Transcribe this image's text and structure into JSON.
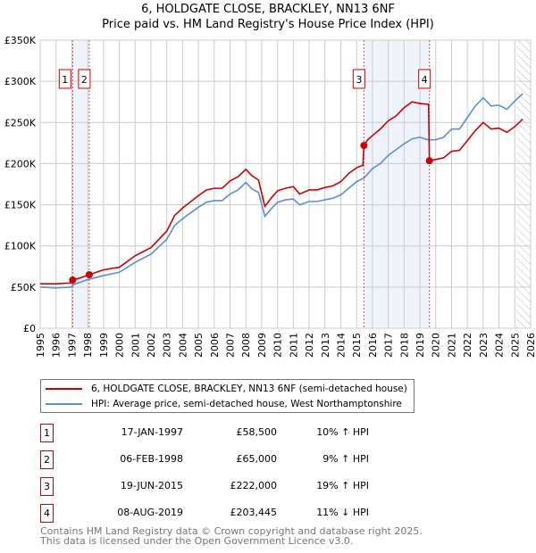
{
  "chart_data": {
    "type": "line",
    "title": "6, HOLDGATE CLOSE, BRACKLEY, NN13 6NF",
    "subtitle": "Price paid vs. HM Land Registry's House Price Index (HPI)",
    "xlim": [
      1995,
      2026
    ],
    "ylim": [
      0,
      350000
    ],
    "x_ticks": [
      "1995",
      "1996",
      "1997",
      "1998",
      "1999",
      "2000",
      "2001",
      "2002",
      "2003",
      "2004",
      "2005",
      "2006",
      "2007",
      "2008",
      "2009",
      "2010",
      "2011",
      "2012",
      "2013",
      "2014",
      "2015",
      "2016",
      "2017",
      "2018",
      "2019",
      "2020",
      "2021",
      "2022",
      "2023",
      "2024",
      "2025",
      "2026"
    ],
    "y_ticks": [
      {
        "v": 0,
        "label": "£0"
      },
      {
        "v": 50000,
        "label": "£50K"
      },
      {
        "v": 100000,
        "label": "£100K"
      },
      {
        "v": 150000,
        "label": "£150K"
      },
      {
        "v": 200000,
        "label": "£200K"
      },
      {
        "v": 250000,
        "label": "£250K"
      },
      {
        "v": 300000,
        "label": "£300K"
      },
      {
        "v": 350000,
        "label": "£350K"
      }
    ],
    "grid": true,
    "series": [
      {
        "name": "6, HOLDGATE CLOSE, BRACKLEY, NN13 6NF (semi-detached house)",
        "color": "#cc0000",
        "x": [
          1995,
          1996,
          1996.9,
          1997.05,
          1997.5,
          1998.1,
          1999,
          2000,
          2001,
          2002,
          2003,
          2003.5,
          2004,
          2005,
          2005.5,
          2006,
          2006.5,
          2007,
          2007.5,
          2008,
          2008.4,
          2008.8,
          2009.2,
          2009.6,
          2010,
          2010.5,
          2011,
          2011.4,
          2012,
          2012.5,
          2013,
          2013.5,
          2014,
          2014.5,
          2015,
          2015.4,
          2015.46,
          2015.7,
          2016,
          2016.5,
          2017,
          2017.5,
          2018,
          2018.5,
          2019,
          2019.55,
          2019.6,
          2020,
          2020.5,
          2021,
          2021.5,
          2022,
          2022.5,
          2023,
          2023.5,
          2024,
          2024.5,
          2025,
          2025.5
        ],
        "y": [
          54000,
          54000,
          55000,
          58500,
          61000,
          65000,
          71000,
          74000,
          88000,
          98000,
          118000,
          137000,
          146000,
          161000,
          168000,
          170000,
          170000,
          179000,
          184000,
          193000,
          185000,
          180000,
          148000,
          158000,
          167000,
          170000,
          172000,
          163000,
          168000,
          168000,
          171000,
          173000,
          178000,
          188000,
          195000,
          198000,
          222000,
          229000,
          234000,
          242000,
          252000,
          258000,
          268000,
          275000,
          273000,
          272000,
          203445,
          205000,
          207000,
          215000,
          216000,
          228000,
          240000,
          250000,
          242000,
          243000,
          238000,
          245000,
          254000
        ]
      },
      {
        "name": "HPI: Average price, semi-detached house, West Northamptonshire",
        "color": "#5b8fd0",
        "x": [
          1995,
          1996,
          1997,
          1997.1,
          1998,
          1999,
          2000,
          2001,
          2002,
          2003,
          2003.5,
          2004,
          2005,
          2005.5,
          2006,
          2006.5,
          2007,
          2007.5,
          2008,
          2008.4,
          2008.8,
          2009.2,
          2009.6,
          2010,
          2010.5,
          2011,
          2011.4,
          2012,
          2012.5,
          2013,
          2013.5,
          2014,
          2014.5,
          2015,
          2015.5,
          2016,
          2016.5,
          2017,
          2017.5,
          2018,
          2018.5,
          2019,
          2019.5,
          2020,
          2020.5,
          2021,
          2021.5,
          2022,
          2022.5,
          2023,
          2023.5,
          2024,
          2024.5,
          2025,
          2025.5
        ],
        "y": [
          50000,
          49000,
          50000,
          53000,
          59000,
          64000,
          68000,
          80000,
          90000,
          108000,
          125000,
          133000,
          147000,
          153000,
          155000,
          155000,
          163000,
          168000,
          177000,
          169000,
          165000,
          136000,
          145000,
          153000,
          156000,
          157000,
          150000,
          154000,
          154000,
          156000,
          158000,
          162000,
          170000,
          178000,
          183000,
          194000,
          200000,
          210000,
          217000,
          224000,
          230000,
          232000,
          229000,
          229000,
          232000,
          242000,
          242000,
          256000,
          270000,
          280000,
          270000,
          271000,
          266000,
          276000,
          285000
        ]
      }
    ],
    "sales": [
      {
        "id": "1",
        "x": 1997.05,
        "price": 58500,
        "date": "17-JAN-1997",
        "price_label": "£58,500",
        "hpi": "10% ↑ HPI"
      },
      {
        "id": "2",
        "x": 1998.1,
        "price": 65000,
        "date": "06-FEB-1998",
        "price_label": "£65,000",
        "hpi": "9% ↑ HPI"
      },
      {
        "id": "3",
        "x": 2015.46,
        "price": 222000,
        "date": "19-JUN-2015",
        "price_label": "£222,000",
        "hpi": "19% ↑ HPI"
      },
      {
        "id": "4",
        "x": 2019.6,
        "price": 203445,
        "date": "08-AUG-2019",
        "price_label": "£203,445",
        "hpi": "11% ↓ HPI"
      }
    ],
    "shaded_ranges": [
      [
        1997.05,
        1998.1
      ],
      [
        2015.46,
        2019.6
      ]
    ],
    "forecast_hatch_from": 2025.1,
    "legend_placement": "below"
  },
  "footer": {
    "line1": "Contains HM Land Registry data © Crown copyright and database right 2025.",
    "line2": "This data is licensed under the Open Government Licence v3.0."
  }
}
